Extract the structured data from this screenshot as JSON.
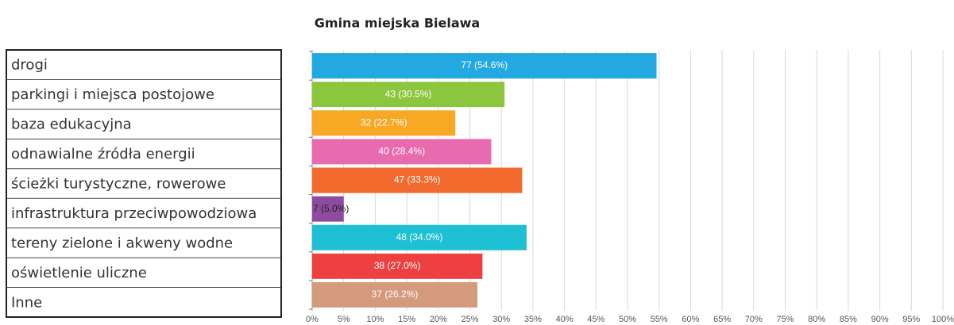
{
  "chart_data": {
    "type": "bar",
    "orientation": "horizontal",
    "subtitle": "Gmina miejska Bielawa",
    "categories": [
      "drogi",
      "parkingi i miejsca postojowe",
      "baza edukacyjna",
      "odnawialne źródła energii",
      "ścieżki turystyczne, rowerowe",
      "infrastruktura przeciwpowodziowa",
      "tereny zielone i akweny wodne",
      "oświetlenie uliczne",
      "Inne"
    ],
    "values": [
      54.6,
      30.5,
      22.7,
      28.4,
      33.3,
      5.0,
      34.0,
      27.0,
      26.2
    ],
    "value_labels": [
      "77 (54.6%)",
      "43 (30.5%)",
      "32 (22.7%)",
      "40 (28.4%)",
      "47 (33.3%)",
      "7 (5.0%)",
      "48 (34.0%)",
      "38 (27.0%)",
      "37 (26.2%)"
    ],
    "colors": [
      "#22a9e1",
      "#8cc63f",
      "#f9a825",
      "#e86bb0",
      "#f26a2e",
      "#8e4a9e",
      "#1ec0d4",
      "#ee4040",
      "#d49a7c"
    ],
    "xlim": [
      0,
      100
    ],
    "xticks": [
      {
        "value": 0,
        "label": "0%"
      },
      {
        "value": 5,
        "label": "5%"
      },
      {
        "value": 10,
        "label": "10%"
      },
      {
        "value": 15,
        "label": "15%"
      },
      {
        "value": 20,
        "label": "20%"
      },
      {
        "value": 25,
        "label": "25%"
      },
      {
        "value": 30,
        "label": "30%"
      },
      {
        "value": 35,
        "label": "35%"
      },
      {
        "value": 40,
        "label": "40%"
      },
      {
        "value": 45,
        "label": "45%"
      },
      {
        "value": 50,
        "label": "50%"
      },
      {
        "value": 55,
        "label": "55%"
      },
      {
        "value": 60,
        "label": "60%"
      },
      {
        "value": 65,
        "label": "65%"
      },
      {
        "value": 70,
        "label": "70%"
      },
      {
        "value": 75,
        "label": "75%"
      },
      {
        "value": 80,
        "label": "80%"
      },
      {
        "value": 85,
        "label": "85%"
      },
      {
        "value": 90,
        "label": "90%"
      },
      {
        "value": 95,
        "label": "95%"
      },
      {
        "value": 100,
        "label": "100%"
      }
    ],
    "grid": true
  }
}
